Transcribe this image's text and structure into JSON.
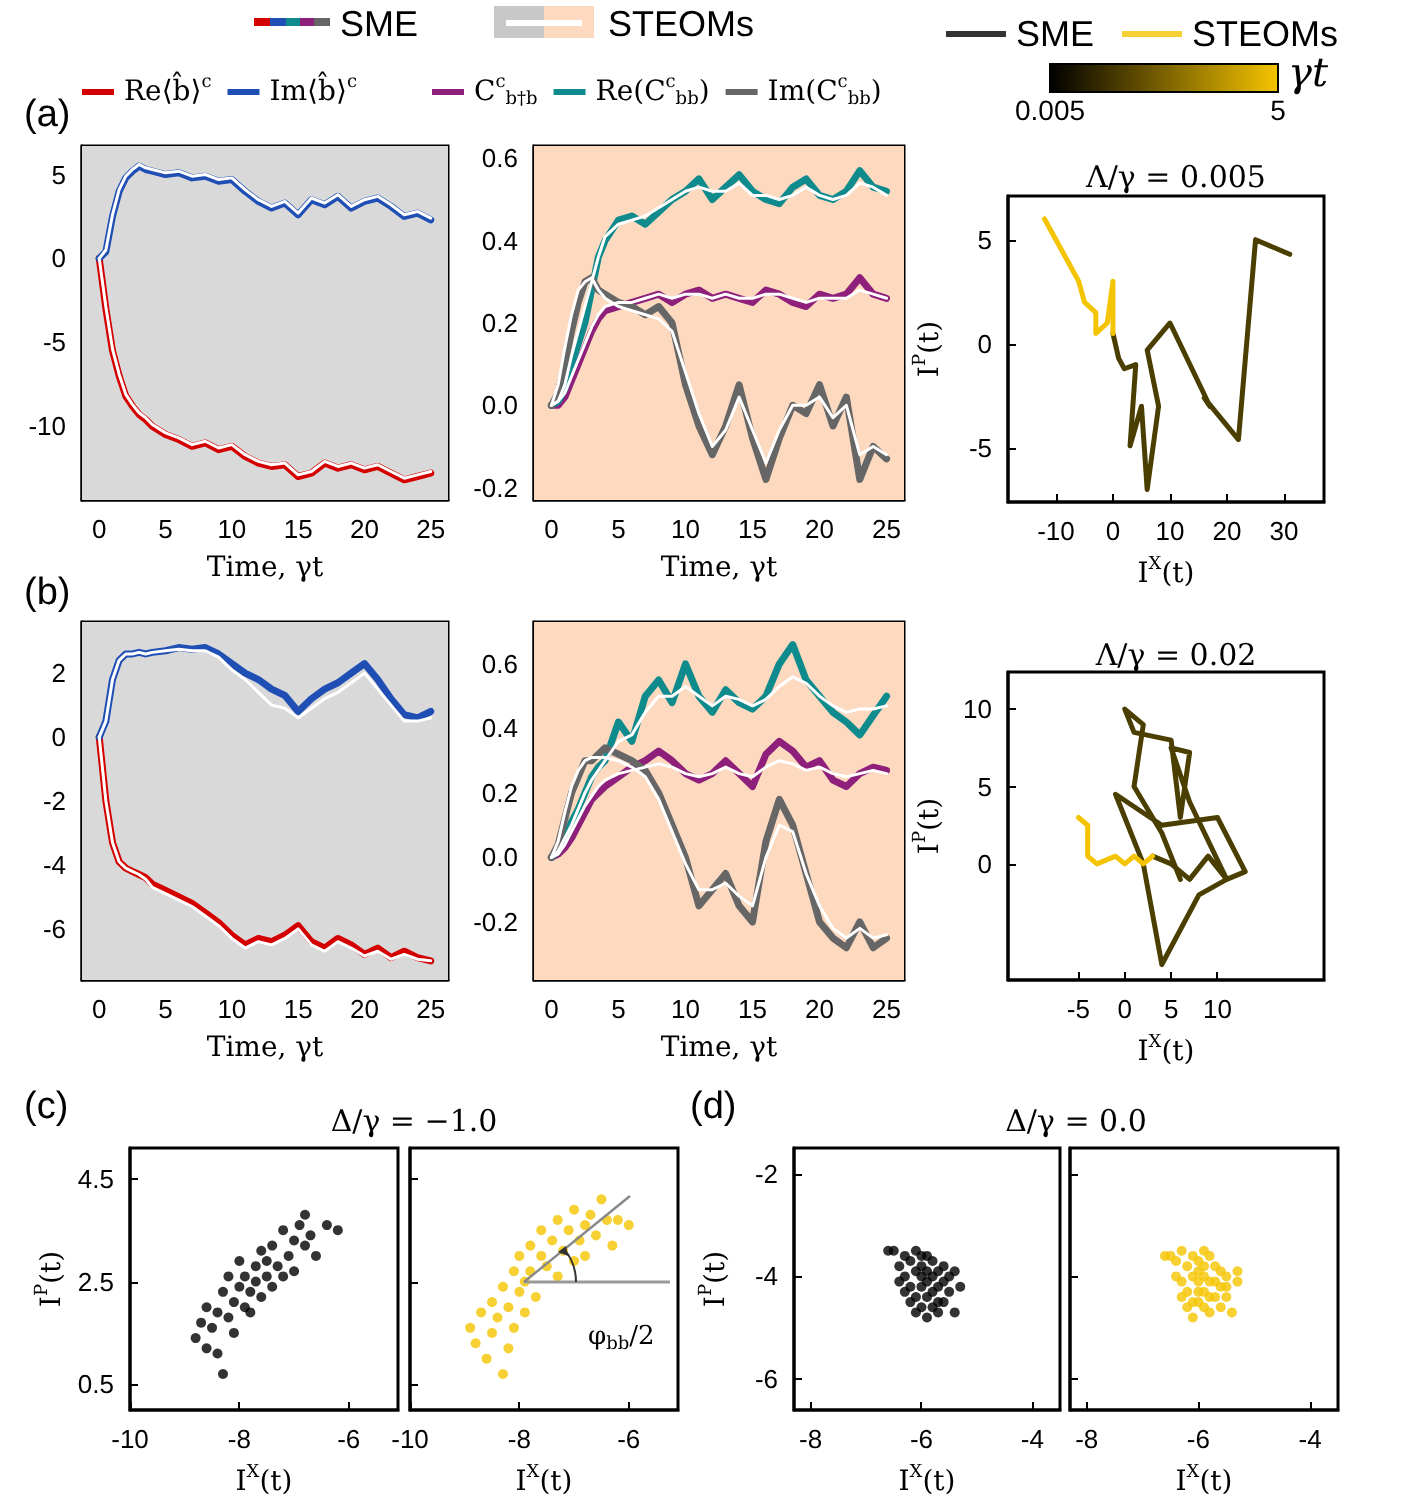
{
  "chart_data": [
    {
      "type": "line",
      "xlabel": "Time, γt",
      "x": [
        0,
        0.5,
        1,
        1.5,
        2,
        2.5,
        3,
        3.5,
        4,
        5,
        6,
        7,
        8,
        9,
        10,
        11,
        12,
        13,
        14,
        15,
        16,
        17,
        18,
        19,
        20,
        21,
        22,
        23,
        24,
        25
      ],
      "xlim": [
        -1.3,
        26.3
      ],
      "xticks": [
        0,
        5,
        10,
        15,
        20,
        25
      ],
      "ylim": [
        -14.4,
        6.7
      ],
      "yticks": [
        -10,
        -5,
        0,
        5
      ],
      "legend": "top",
      "annotations": [
        "(a)",
        "SME",
        "STEOMs"
      ],
      "bands": [
        {
          "axis": "x",
          "from": -1.3,
          "to": 26.3,
          "color": "#d9d9d9"
        }
      ],
      "series": [
        {
          "name": "Re⟨b̂⟩$^{c}$",
          "color": "#d40000",
          "values": [
            0,
            -3.0,
            -5.5,
            -7.0,
            -8.2,
            -8.8,
            -9.3,
            -9.6,
            -10.0,
            -10.5,
            -10.8,
            -11.2,
            -11.0,
            -11.4,
            -11.2,
            -11.8,
            -12.2,
            -12.4,
            -12.3,
            -13.0,
            -12.8,
            -12.2,
            -12.5,
            -12.3,
            -12.6,
            -12.4,
            -12.8,
            -13.2,
            -13.0,
            -12.8
          ]
        },
        {
          "name": "Im⟨b̂⟩$^{c}$",
          "color": "#1f4fb4",
          "values": [
            0,
            0.4,
            2.5,
            4.0,
            4.8,
            5.2,
            5.5,
            5.3,
            5.2,
            5.0,
            5.1,
            4.8,
            4.9,
            4.6,
            4.7,
            4.0,
            3.4,
            3.0,
            3.3,
            2.6,
            3.5,
            3.2,
            3.7,
            3.0,
            3.4,
            3.6,
            3.1,
            2.5,
            2.7,
            2.3
          ]
        },
        {
          "color": "#ffffff",
          "values": [
            0,
            -2.9,
            -5.4,
            -6.9,
            -8.1,
            -8.7,
            -9.2,
            -9.5,
            -9.9,
            -10.4,
            -10.7,
            -11.1,
            -10.9,
            -11.3,
            -11.1,
            -11.7,
            -12.1,
            -12.3,
            -12.2,
            -12.9,
            -12.7,
            -12.1,
            -12.4,
            -12.2,
            -12.5,
            -12.3,
            -12.7,
            -13.1,
            -12.9,
            -12.7
          ]
        },
        {
          "color": "#ffffff",
          "values": [
            0,
            0.5,
            2.6,
            4.1,
            4.9,
            5.3,
            5.6,
            5.4,
            5.3,
            5.1,
            5.2,
            4.9,
            5.0,
            4.7,
            4.8,
            4.1,
            3.5,
            3.1,
            3.4,
            2.7,
            3.6,
            3.3,
            3.8,
            3.1,
            3.5,
            3.7,
            3.2,
            2.6,
            2.8,
            2.4
          ]
        }
      ]
    },
    {
      "type": "line",
      "xlabel": "Time, γt",
      "x": [
        0,
        0.5,
        1,
        1.5,
        2,
        2.5,
        3,
        3.5,
        4,
        5,
        6,
        7,
        8,
        9,
        10,
        11,
        12,
        13,
        14,
        15,
        16,
        17,
        18,
        19,
        20,
        21,
        22,
        23,
        24,
        25
      ],
      "xlim": [
        -1.3,
        26.3
      ],
      "xticks": [
        0,
        5,
        10,
        15,
        20,
        25
      ],
      "ylim": [
        -0.23,
        0.63
      ],
      "yticks": [
        -0.2,
        {
          "value": 0,
          "label": "0.0"
        },
        0.2,
        0.4,
        0.6
      ],
      "legend": "top",
      "bands": [
        {
          "axis": "x",
          "from": -1.3,
          "to": 26.3,
          "color": "#fdd9bf"
        }
      ],
      "series": [
        {
          "name": "C$^{c}$$_{b†b}$",
          "color": "#8e1f7a",
          "values": [
            0,
            0.0,
            0.02,
            0.06,
            0.1,
            0.14,
            0.18,
            0.21,
            0.23,
            0.24,
            0.25,
            0.26,
            0.27,
            0.25,
            0.27,
            0.28,
            0.26,
            0.27,
            0.26,
            0.25,
            0.28,
            0.27,
            0.25,
            0.24,
            0.27,
            0.26,
            0.27,
            0.31,
            0.27,
            0.26
          ]
        },
        {
          "name": "Re(C$^{c}$$_{bb}$)",
          "color": "#0f8b8d",
          "values": [
            0,
            0.01,
            0.04,
            0.1,
            0.15,
            0.2,
            0.28,
            0.36,
            0.4,
            0.45,
            0.46,
            0.44,
            0.47,
            0.5,
            0.52,
            0.55,
            0.5,
            0.53,
            0.56,
            0.52,
            0.5,
            0.49,
            0.53,
            0.55,
            0.51,
            0.5,
            0.52,
            0.57,
            0.53,
            0.52
          ]
        },
        {
          "name": "Im(C$^{c}$$_{bb}$)",
          "color": "#666666",
          "values": [
            0,
            0.03,
            0.1,
            0.18,
            0.25,
            0.3,
            0.31,
            0.28,
            0.27,
            0.25,
            0.24,
            0.22,
            0.24,
            0.2,
            0.05,
            -0.05,
            -0.12,
            -0.05,
            0.05,
            -0.08,
            -0.18,
            -0.08,
            0.0,
            -0.02,
            0.05,
            -0.05,
            0.02,
            -0.18,
            -0.1,
            -0.13
          ]
        },
        {
          "color": "#ffffff",
          "values": [
            0,
            0.01,
            0.03,
            0.07,
            0.11,
            0.15,
            0.19,
            0.22,
            0.24,
            0.25,
            0.25,
            0.26,
            0.27,
            0.26,
            0.27,
            0.27,
            0.26,
            0.27,
            0.26,
            0.26,
            0.27,
            0.27,
            0.26,
            0.25,
            0.26,
            0.26,
            0.26,
            0.28,
            0.27,
            0.26
          ]
        },
        {
          "color": "#ffffff",
          "values": [
            0,
            0.01,
            0.05,
            0.12,
            0.18,
            0.24,
            0.3,
            0.36,
            0.41,
            0.44,
            0.45,
            0.46,
            0.48,
            0.5,
            0.52,
            0.53,
            0.52,
            0.52,
            0.54,
            0.51,
            0.51,
            0.5,
            0.51,
            0.53,
            0.51,
            0.5,
            0.51,
            0.54,
            0.53,
            0.51
          ]
        },
        {
          "color": "#ffffff",
          "values": [
            0,
            0.05,
            0.14,
            0.22,
            0.28,
            0.3,
            0.31,
            0.28,
            0.26,
            0.24,
            0.23,
            0.22,
            0.21,
            0.18,
            0.08,
            -0.02,
            -0.1,
            -0.06,
            0.02,
            -0.06,
            -0.14,
            -0.06,
            0.0,
            0.0,
            0.02,
            -0.03,
            0.0,
            -0.12,
            -0.1,
            -0.12
          ]
        }
      ]
    },
    {
      "type": "line",
      "title": "Λ/γ = 0.005",
      "xlabel": "I$^{X}$(t)",
      "ylabel": "I$^{P}$(t)",
      "xlim": [
        -18.4,
        37
      ],
      "xticks": [
        -10,
        0,
        10,
        20,
        30
      ],
      "ylim": [
        -7.6,
        7.1
      ],
      "yticks": [
        -5,
        0,
        5
      ],
      "clim": [
        0.005,
        5
      ],
      "cticks": [
        0.005,
        5
      ],
      "clabel": "γt",
      "series": [
        {
          "color": "#4a3f00",
          "x": [
            31,
            25,
            22,
            16,
            17,
            10,
            6,
            8,
            6,
            5,
            3,
            4,
            2,
            1,
            0
          ],
          "values": [
            4.3,
            5,
            -4.6,
            -2.6,
            -3,
            1,
            -0.3,
            -3,
            -7,
            -3,
            -4.9,
            -1,
            -1.2,
            -0.7,
            0.5
          ]
        },
        {
          "color": "#f5c400",
          "x": [
            0,
            0,
            -1,
            -3,
            -3,
            -5,
            -6,
            -8,
            -10,
            -12
          ],
          "values": [
            0.5,
            3,
            1,
            0.5,
            1.5,
            2,
            3,
            4,
            5,
            6
          ]
        }
      ]
    },
    {
      "type": "line",
      "xlabel": "Time, γt",
      "x": [
        0,
        0.5,
        1,
        1.5,
        2,
        2.5,
        3,
        3.5,
        4,
        5,
        6,
        7,
        8,
        9,
        10,
        11,
        12,
        13,
        14,
        15,
        16,
        17,
        18,
        19,
        20,
        21,
        22,
        23,
        24,
        25
      ],
      "xlim": [
        -1.3,
        26.3
      ],
      "xticks": [
        0,
        5,
        10,
        15,
        20,
        25
      ],
      "ylim": [
        -7.6,
        3.6
      ],
      "yticks": [
        -6,
        -4,
        -2,
        0,
        2
      ],
      "annotations": [
        "(b)"
      ],
      "bands": [
        {
          "axis": "x",
          "from": -1.3,
          "to": 26.3,
          "color": "#d9d9d9"
        }
      ],
      "series": [
        {
          "color": "#d40000",
          "values": [
            0,
            -2.0,
            -3.3,
            -3.9,
            -4.1,
            -4.2,
            -4.3,
            -4.4,
            -4.6,
            -4.8,
            -5.0,
            -5.2,
            -5.5,
            -5.8,
            -6.2,
            -6.5,
            -6.3,
            -6.4,
            -6.2,
            -5.9,
            -6.4,
            -6.6,
            -6.3,
            -6.5,
            -6.8,
            -6.6,
            -6.9,
            -6.7,
            -6.9,
            -7.0
          ]
        },
        {
          "color": "#1f4fb4",
          "values": [
            0,
            0.5,
            1.8,
            2.4,
            2.6,
            2.6,
            2.65,
            2.6,
            2.65,
            2.7,
            2.8,
            2.75,
            2.8,
            2.6,
            2.3,
            2.0,
            1.8,
            1.5,
            1.3,
            0.8,
            1.2,
            1.5,
            1.7,
            2.0,
            2.3,
            1.8,
            1.2,
            0.7,
            0.6,
            0.8
          ]
        },
        {
          "color": "#ffffff",
          "values": [
            0,
            -2.0,
            -3.3,
            -3.9,
            -4.1,
            -4.2,
            -4.3,
            -4.45,
            -4.7,
            -4.9,
            -5.1,
            -5.3,
            -5.6,
            -5.9,
            -6.3,
            -6.6,
            -6.4,
            -6.5,
            -6.3,
            -6.0,
            -6.5,
            -6.7,
            -6.4,
            -6.6,
            -6.85,
            -6.7,
            -6.95,
            -6.8,
            -6.95,
            -7.0
          ]
        },
        {
          "color": "#ffffff",
          "values": [
            0,
            0.5,
            1.8,
            2.4,
            2.6,
            2.6,
            2.65,
            2.6,
            2.65,
            2.7,
            2.75,
            2.7,
            2.7,
            2.5,
            2.1,
            1.8,
            1.4,
            1.0,
            0.9,
            0.6,
            0.9,
            1.2,
            1.4,
            1.7,
            2.0,
            1.5,
            1.0,
            0.5,
            0.5,
            0.6
          ]
        }
      ]
    },
    {
      "type": "line",
      "xlabel": "Time, γt",
      "x": [
        0,
        0.5,
        1,
        1.5,
        2,
        2.5,
        3,
        3.5,
        4,
        5,
        6,
        7,
        8,
        9,
        10,
        11,
        12,
        13,
        14,
        15,
        16,
        17,
        18,
        19,
        20,
        21,
        22,
        23,
        24,
        25
      ],
      "xlim": [
        -1.3,
        26.3
      ],
      "xticks": [
        0,
        5,
        10,
        15,
        20,
        25
      ],
      "ylim": [
        -0.38,
        0.73
      ],
      "yticks": [
        -0.2,
        {
          "value": 0,
          "label": "0.0"
        },
        0.2,
        0.4,
        0.6
      ],
      "bands": [
        {
          "axis": "x",
          "from": -1.3,
          "to": 26.3,
          "color": "#fdd9bf"
        }
      ],
      "series": [
        {
          "color": "#8e1f7a",
          "values": [
            0,
            0.01,
            0.03,
            0.06,
            0.1,
            0.14,
            0.18,
            0.2,
            0.22,
            0.25,
            0.28,
            0.3,
            0.33,
            0.3,
            0.26,
            0.24,
            0.26,
            0.3,
            0.26,
            0.22,
            0.32,
            0.36,
            0.33,
            0.28,
            0.3,
            0.24,
            0.22,
            0.26,
            0.28,
            0.27
          ]
        },
        {
          "color": "#0f8b8d",
          "values": [
            0,
            0.02,
            0.06,
            0.11,
            0.15,
            0.2,
            0.25,
            0.28,
            0.3,
            0.42,
            0.36,
            0.5,
            0.55,
            0.48,
            0.6,
            0.5,
            0.45,
            0.52,
            0.48,
            0.46,
            0.5,
            0.6,
            0.66,
            0.55,
            0.5,
            0.45,
            0.42,
            0.38,
            0.44,
            0.5
          ]
        },
        {
          "color": "#666666",
          "values": [
            0,
            0.04,
            0.12,
            0.2,
            0.25,
            0.3,
            0.3,
            0.32,
            0.34,
            0.32,
            0.3,
            0.27,
            0.2,
            0.1,
            0.0,
            -0.15,
            -0.1,
            -0.05,
            -0.15,
            -0.2,
            0.05,
            0.18,
            0.1,
            -0.05,
            -0.2,
            -0.25,
            -0.28,
            -0.2,
            -0.28,
            -0.25
          ]
        },
        {
          "color": "#ffffff",
          "values": [
            0,
            0.01,
            0.04,
            0.08,
            0.12,
            0.16,
            0.19,
            0.22,
            0.24,
            0.26,
            0.27,
            0.28,
            0.29,
            0.28,
            0.26,
            0.25,
            0.26,
            0.28,
            0.26,
            0.25,
            0.28,
            0.3,
            0.29,
            0.27,
            0.28,
            0.26,
            0.25,
            0.26,
            0.27,
            0.26
          ]
        },
        {
          "color": "#ffffff",
          "values": [
            0,
            0.02,
            0.06,
            0.1,
            0.15,
            0.2,
            0.24,
            0.27,
            0.3,
            0.36,
            0.38,
            0.45,
            0.5,
            0.5,
            0.53,
            0.5,
            0.47,
            0.5,
            0.49,
            0.47,
            0.49,
            0.53,
            0.56,
            0.54,
            0.5,
            0.47,
            0.45,
            0.46,
            0.46,
            0.47
          ]
        },
        {
          "color": "#ffffff",
          "values": [
            0,
            0.05,
            0.14,
            0.22,
            0.27,
            0.3,
            0.31,
            0.31,
            0.31,
            0.3,
            0.28,
            0.25,
            0.18,
            0.08,
            -0.02,
            -0.1,
            -0.1,
            -0.08,
            -0.12,
            -0.15,
            0.0,
            0.1,
            0.08,
            -0.05,
            -0.15,
            -0.22,
            -0.25,
            -0.22,
            -0.25,
            -0.24
          ]
        }
      ]
    },
    {
      "type": "line",
      "title": "Λ/γ = 0.02",
      "xlabel": "I$^{X}$(t)",
      "ylabel": "I$^{P}$(t)",
      "xlim": [
        -12.6,
        21.5
      ],
      "xticks": [
        -5,
        0,
        5,
        10
      ],
      "ylim": [
        -7.5,
        12.4
      ],
      "yticks": [
        0,
        5,
        10
      ],
      "series": [
        {
          "color": "#4a3f00",
          "x": [
            3,
            5,
            7,
            9,
            11,
            8,
            4,
            2,
            -1,
            4,
            10,
            13,
            11,
            7,
            5,
            7,
            6,
            5,
            1,
            0,
            2,
            1,
            4,
            6
          ],
          "values": [
            0.5,
            0,
            -1,
            0.5,
            -1,
            -2,
            -6.5,
            0,
            4.5,
            2.5,
            3,
            -0.5,
            -1,
            4,
            7.5,
            7.2,
            3,
            8,
            8.5,
            10,
            9,
            5,
            2,
            -1
          ]
        },
        {
          "color": "#f5c400",
          "x": [
            -5,
            -4,
            -4,
            -3,
            -1,
            0,
            1,
            2,
            3
          ],
          "values": [
            3,
            2.5,
            0.5,
            0,
            0.5,
            0,
            0.5,
            0,
            0.5
          ]
        }
      ]
    },
    {
      "type": "scatter",
      "title": "Δ/γ = −1.0",
      "xlabel": "I$^{X}$(t)",
      "ylabel": "I$^{P}$(t)",
      "xlim": [
        -10,
        -5.1
      ],
      "xticks": [
        -10,
        -8,
        -6
      ],
      "ylim": [
        0,
        5.1
      ],
      "yticks": [
        0.5,
        2.5,
        4.5
      ],
      "marker": "circle",
      "legend": "top",
      "annotations": [
        "(c)"
      ],
      "series": [
        {
          "name": "SME",
          "color": "#000000",
          "x": [
            -8.8,
            -8.7,
            -8.6,
            -8.6,
            -8.5,
            -8.4,
            -8.4,
            -8.3,
            -8.3,
            -8.2,
            -8.2,
            -8.1,
            -8.1,
            -8.0,
            -8.0,
            -7.9,
            -7.9,
            -7.8,
            -7.8,
            -7.7,
            -7.7,
            -7.6,
            -7.6,
            -7.5,
            -7.5,
            -7.4,
            -7.4,
            -7.3,
            -7.2,
            -7.2,
            -7.1,
            -7.0,
            -7.0,
            -6.9,
            -6.8,
            -6.8,
            -6.7,
            -6.6,
            -6.4,
            -6.2
          ],
          "values": [
            1.4,
            1.7,
            1.2,
            2.0,
            1.6,
            1.9,
            1.1,
            2.3,
            0.7,
            1.8,
            2.6,
            2.1,
            1.5,
            2.4,
            2.9,
            2.0,
            2.6,
            2.3,
            1.9,
            2.8,
            2.5,
            2.2,
            3.1,
            2.6,
            2.9,
            2.4,
            3.2,
            2.8,
            3.5,
            2.6,
            3.0,
            3.3,
            2.7,
            3.6,
            3.2,
            3.8,
            3.4,
            3.0,
            3.6,
            3.5
          ]
        }
      ]
    },
    {
      "type": "scatter",
      "xlabel": "I$^{X}$(t)",
      "xlim": [
        -10,
        -5.1
      ],
      "xticks": [
        -10,
        -8,
        -6
      ],
      "ylim": [
        0,
        5.1
      ],
      "yticks": [
        0.5,
        2.5,
        4.5
      ],
      "tick_labels": "x",
      "marker": "circle",
      "legend": "top",
      "annotations": [
        "φ$_{bb}$/2"
      ],
      "series": [
        {
          "name": "STEOMs",
          "color": "#f5c400",
          "x": [
            -8.9,
            -8.8,
            -8.7,
            -8.6,
            -8.5,
            -8.5,
            -8.4,
            -8.3,
            -8.3,
            -8.2,
            -8.2,
            -8.1,
            -8.1,
            -8.0,
            -8.0,
            -7.9,
            -7.9,
            -7.8,
            -7.8,
            -7.7,
            -7.6,
            -7.6,
            -7.5,
            -7.4,
            -7.3,
            -7.3,
            -7.2,
            -7.1,
            -7.0,
            -7.0,
            -6.9,
            -6.8,
            -6.8,
            -6.7,
            -6.6,
            -6.5,
            -6.4,
            -6.3,
            -6.2,
            -6.0
          ],
          "values": [
            1.6,
            1.3,
            1.9,
            1.0,
            2.1,
            1.5,
            1.8,
            0.7,
            2.4,
            1.2,
            2.0,
            2.7,
            1.6,
            2.3,
            3.0,
            2.5,
            1.9,
            3.2,
            2.7,
            2.2,
            3.0,
            3.5,
            2.8,
            3.3,
            2.6,
            3.7,
            3.1,
            3.5,
            2.9,
            3.9,
            3.3,
            3.6,
            3.0,
            3.8,
            3.4,
            4.1,
            3.7,
            3.2,
            3.7,
            3.6
          ]
        }
      ]
    },
    {
      "type": "scatter",
      "title": "Δ/γ = 0.0",
      "xlabel": "I$^{X}$(t)",
      "ylabel": "I$^{P}$(t)",
      "xlim": [
        -8.3,
        -3.5
      ],
      "xticks": [
        -8,
        -6,
        -4
      ],
      "ylim": [
        -6.6,
        -1.5
      ],
      "yticks": [
        -6,
        -4,
        -2
      ],
      "marker": "circle",
      "annotations": [
        "(d)"
      ],
      "series": [
        {
          "color": "#000000",
          "x": [
            -6.5,
            -6.4,
            -6.3,
            -6.3,
            -6.2,
            -6.2,
            -6.1,
            -6.1,
            -6.1,
            -6.0,
            -6.0,
            -6.0,
            -6.0,
            -5.9,
            -5.9,
            -5.9,
            -5.9,
            -5.8,
            -5.8,
            -5.8,
            -5.7,
            -5.7,
            -5.7,
            -5.6,
            -5.6,
            -5.5,
            -5.5,
            -5.4,
            -5.3,
            -6.4,
            -6.2,
            -6.6,
            -6.0,
            -5.8,
            -6.1,
            -5.9,
            -5.7,
            -6.3,
            -5.4,
            -5.6
          ],
          "values": [
            -3.5,
            -3.8,
            -3.6,
            -4.0,
            -3.7,
            -4.2,
            -3.9,
            -4.4,
            -3.5,
            -4.0,
            -4.2,
            -3.8,
            -4.6,
            -4.1,
            -3.9,
            -4.4,
            -3.6,
            -4.0,
            -4.3,
            -4.6,
            -3.9,
            -4.2,
            -4.5,
            -4.1,
            -3.8,
            -4.3,
            -4.0,
            -4.7,
            -4.2,
            -4.1,
            -4.5,
            -3.5,
            -3.6,
            -3.7,
            -4.7,
            -4.8,
            -4.7,
            -4.3,
            -3.9,
            -4.5
          ]
        }
      ]
    },
    {
      "type": "scatter",
      "xlabel": "I$^{X}$(t)",
      "xlim": [
        -8.3,
        -3.5
      ],
      "xticks": [
        -8,
        -6,
        -4
      ],
      "ylim": [
        -6.6,
        -1.5
      ],
      "yticks": [
        -6,
        -4,
        -2
      ],
      "tick_labels": "x",
      "marker": "circle",
      "series": [
        {
          "color": "#f5c400",
          "x": [
            -6.5,
            -6.4,
            -6.3,
            -6.3,
            -6.2,
            -6.2,
            -6.1,
            -6.1,
            -6.1,
            -6.0,
            -6.0,
            -6.0,
            -6.0,
            -5.9,
            -5.9,
            -5.9,
            -5.9,
            -5.8,
            -5.8,
            -5.8,
            -5.7,
            -5.7,
            -5.7,
            -5.6,
            -5.6,
            -5.5,
            -5.5,
            -5.4,
            -5.3,
            -6.4,
            -6.2,
            -6.6,
            -6.0,
            -5.8,
            -6.1,
            -5.9,
            -5.6,
            -6.3,
            -5.3,
            -5.5
          ],
          "values": [
            -3.6,
            -3.7,
            -3.5,
            -4.1,
            -3.8,
            -4.3,
            -4.0,
            -4.5,
            -3.6,
            -4.1,
            -4.3,
            -3.9,
            -4.5,
            -4.0,
            -3.8,
            -4.3,
            -3.5,
            -4.1,
            -4.4,
            -4.7,
            -3.8,
            -4.1,
            -4.4,
            -4.2,
            -3.9,
            -4.2,
            -4.0,
            -4.7,
            -4.1,
            -4.0,
            -4.6,
            -3.6,
            -3.7,
            -3.6,
            -4.8,
            -4.6,
            -4.6,
            -4.4,
            -3.9,
            -4.4
          ]
        }
      ]
    }
  ]
}
